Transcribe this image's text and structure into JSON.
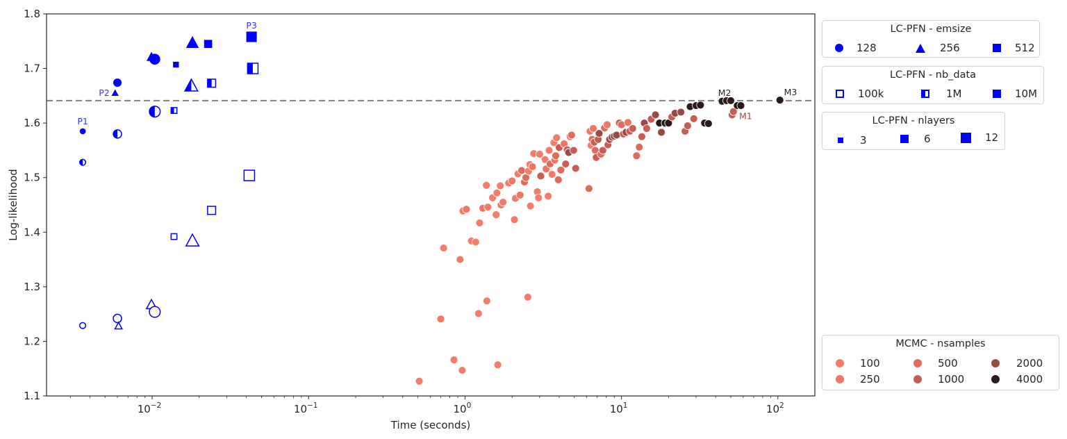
{
  "chart_data": {
    "type": "scatter",
    "title": "",
    "xlabel": "Time (seconds)",
    "ylabel": "Log-likelihood",
    "xscale": "log",
    "xlim": [
      0.0021,
      180
    ],
    "ylim": [
      1.1,
      1.8
    ],
    "x_ticks": [
      {
        "value": 0.01,
        "base": "10",
        "exp": "−2"
      },
      {
        "value": 0.1,
        "base": "10",
        "exp": "−1"
      },
      {
        "value": 1,
        "base": "10",
        "exp": "0"
      },
      {
        "value": 10,
        "base": "10",
        "exp": "1"
      },
      {
        "value": 100,
        "base": "10",
        "exp": "2"
      }
    ],
    "y_ticks": [
      "1.1",
      "1.2",
      "1.3",
      "1.4",
      "1.5",
      "1.6",
      "1.7",
      "1.8"
    ],
    "grid": false,
    "reference_line": {
      "y": 1.641,
      "style": "dashed",
      "color": "#808080"
    },
    "colors": {
      "lcpfn": "#0000ff",
      "mcmc_100": "#f47c6b",
      "mcmc_250": "#f07563",
      "mcmc_500": "#e06b5d",
      "mcmc_1000": "#c75e55",
      "mcmc_2000": "#9a4a44",
      "mcmc_4000": "#2a1a1c"
    },
    "lcpfn_points": [
      {
        "x": 0.0036,
        "y": 1.585,
        "emsize": 128,
        "nb_data": "10M",
        "nlayers": 3
      },
      {
        "x": 0.0036,
        "y": 1.528,
        "emsize": 128,
        "nb_data": "1M",
        "nlayers": 3
      },
      {
        "x": 0.0036,
        "y": 1.229,
        "emsize": 128,
        "nb_data": "100k",
        "nlayers": 3
      },
      {
        "x": 0.006,
        "y": 1.674,
        "emsize": 128,
        "nb_data": "10M",
        "nlayers": 6
      },
      {
        "x": 0.006,
        "y": 1.58,
        "emsize": 128,
        "nb_data": "1M",
        "nlayers": 6
      },
      {
        "x": 0.006,
        "y": 1.242,
        "emsize": 128,
        "nb_data": "100k",
        "nlayers": 6
      },
      {
        "x": 0.0058,
        "y": 1.655,
        "emsize": 256,
        "nb_data": "10M",
        "nlayers": 3
      },
      {
        "x": 0.0061,
        "y": 1.228,
        "emsize": 256,
        "nb_data": "100k",
        "nlayers": 3
      },
      {
        "x": 0.0099,
        "y": 1.721,
        "emsize": 256,
        "nb_data": "10M",
        "nlayers": 6
      },
      {
        "x": 0.0099,
        "y": 1.267,
        "emsize": 256,
        "nb_data": "100k",
        "nlayers": 6
      },
      {
        "x": 0.0104,
        "y": 1.717,
        "emsize": 128,
        "nb_data": "10M",
        "nlayers": 12
      },
      {
        "x": 0.0104,
        "y": 1.621,
        "emsize": 128,
        "nb_data": "1M",
        "nlayers": 12
      },
      {
        "x": 0.0104,
        "y": 1.254,
        "emsize": 128,
        "nb_data": "100k",
        "nlayers": 12
      },
      {
        "x": 0.0142,
        "y": 1.707,
        "emsize": 512,
        "nb_data": "10M",
        "nlayers": 3
      },
      {
        "x": 0.0138,
        "y": 1.623,
        "emsize": 512,
        "nb_data": "1M",
        "nlayers": 3
      },
      {
        "x": 0.0138,
        "y": 1.392,
        "emsize": 512,
        "nb_data": "100k",
        "nlayers": 3
      },
      {
        "x": 0.0181,
        "y": 1.747,
        "emsize": 256,
        "nb_data": "10M",
        "nlayers": 12
      },
      {
        "x": 0.0178,
        "y": 1.668,
        "emsize": 256,
        "nb_data": "1M",
        "nlayers": 12
      },
      {
        "x": 0.0181,
        "y": 1.384,
        "emsize": 256,
        "nb_data": "100k",
        "nlayers": 12
      },
      {
        "x": 0.0228,
        "y": 1.745,
        "emsize": 512,
        "nb_data": "10M",
        "nlayers": 6
      },
      {
        "x": 0.024,
        "y": 1.673,
        "emsize": 512,
        "nb_data": "1M",
        "nlayers": 6
      },
      {
        "x": 0.024,
        "y": 1.44,
        "emsize": 512,
        "nb_data": "100k",
        "nlayers": 6
      },
      {
        "x": 0.0432,
        "y": 1.758,
        "emsize": 512,
        "nb_data": "10M",
        "nlayers": 12
      },
      {
        "x": 0.044,
        "y": 1.7,
        "emsize": 512,
        "nb_data": "1M",
        "nlayers": 12
      },
      {
        "x": 0.0418,
        "y": 1.504,
        "emsize": 512,
        "nb_data": "100k",
        "nlayers": 12
      }
    ],
    "lcpfn_annotations": [
      {
        "label": "P1",
        "x": 0.0036,
        "y": 1.585
      },
      {
        "label": "P2",
        "x": 0.0058,
        "y": 1.655
      },
      {
        "label": "P3",
        "x": 0.0432,
        "y": 1.758
      }
    ],
    "mcmc_annotations": [
      {
        "label": "M1",
        "x": 50,
        "y": 1.62,
        "color": "#9a4a44"
      },
      {
        "label": "M2",
        "x": 45,
        "y": 1.641,
        "color": "#262626"
      },
      {
        "label": "M3",
        "x": 104,
        "y": 1.642,
        "color": "#262626"
      }
    ],
    "mcmc_points": [
      {
        "x": 0.51,
        "y": 1.127,
        "n": 100
      },
      {
        "x": 0.7,
        "y": 1.241,
        "n": 100
      },
      {
        "x": 0.73,
        "y": 1.371,
        "n": 100
      },
      {
        "x": 0.85,
        "y": 1.166,
        "n": 100
      },
      {
        "x": 0.93,
        "y": 1.35,
        "n": 100
      },
      {
        "x": 0.96,
        "y": 1.147,
        "n": 100
      },
      {
        "x": 0.97,
        "y": 1.439,
        "n": 100
      },
      {
        "x": 1.02,
        "y": 1.442,
        "n": 250
      },
      {
        "x": 1.1,
        "y": 1.384,
        "n": 100
      },
      {
        "x": 1.17,
        "y": 1.382,
        "n": 100
      },
      {
        "x": 1.22,
        "y": 1.251,
        "n": 100
      },
      {
        "x": 1.24,
        "y": 1.417,
        "n": 100
      },
      {
        "x": 1.3,
        "y": 1.444,
        "n": 250
      },
      {
        "x": 1.37,
        "y": 1.486,
        "n": 100
      },
      {
        "x": 1.38,
        "y": 1.274,
        "n": 100
      },
      {
        "x": 1.4,
        "y": 1.446,
        "n": 100
      },
      {
        "x": 1.5,
        "y": 1.463,
        "n": 100
      },
      {
        "x": 1.58,
        "y": 1.432,
        "n": 100
      },
      {
        "x": 1.62,
        "y": 1.157,
        "n": 100
      },
      {
        "x": 1.6,
        "y": 1.472,
        "n": 100
      },
      {
        "x": 1.68,
        "y": 1.485,
        "n": 100
      },
      {
        "x": 1.7,
        "y": 1.45,
        "n": 250
      },
      {
        "x": 1.75,
        "y": 1.455,
        "n": 100
      },
      {
        "x": 1.9,
        "y": 1.49,
        "n": 100
      },
      {
        "x": 2.0,
        "y": 1.494,
        "n": 250
      },
      {
        "x": 2.07,
        "y": 1.423,
        "n": 100
      },
      {
        "x": 2.1,
        "y": 1.462,
        "n": 100
      },
      {
        "x": 2.18,
        "y": 1.507,
        "n": 100
      },
      {
        "x": 2.25,
        "y": 1.468,
        "n": 250
      },
      {
        "x": 2.3,
        "y": 1.513,
        "n": 500
      },
      {
        "x": 2.4,
        "y": 1.492,
        "n": 500
      },
      {
        "x": 2.45,
        "y": 1.5,
        "n": 500
      },
      {
        "x": 2.52,
        "y": 1.281,
        "n": 100
      },
      {
        "x": 2.55,
        "y": 1.512,
        "n": 100
      },
      {
        "x": 2.6,
        "y": 1.524,
        "n": 100
      },
      {
        "x": 2.62,
        "y": 1.448,
        "n": 100
      },
      {
        "x": 2.7,
        "y": 1.52,
        "n": 250
      },
      {
        "x": 2.75,
        "y": 1.544,
        "n": 100
      },
      {
        "x": 2.9,
        "y": 1.474,
        "n": 100
      },
      {
        "x": 2.95,
        "y": 1.463,
        "n": 100
      },
      {
        "x": 3.0,
        "y": 1.543,
        "n": 100
      },
      {
        "x": 3.05,
        "y": 1.503,
        "n": 1000
      },
      {
        "x": 3.25,
        "y": 1.533,
        "n": 100
      },
      {
        "x": 3.3,
        "y": 1.516,
        "n": 250
      },
      {
        "x": 3.4,
        "y": 1.466,
        "n": 100
      },
      {
        "x": 3.45,
        "y": 1.55,
        "n": 100
      },
      {
        "x": 3.5,
        "y": 1.525,
        "n": 500
      },
      {
        "x": 3.6,
        "y": 1.506,
        "n": 100
      },
      {
        "x": 3.7,
        "y": 1.564,
        "n": 100
      },
      {
        "x": 3.75,
        "y": 1.532,
        "n": 250
      },
      {
        "x": 3.8,
        "y": 1.54,
        "n": 500
      },
      {
        "x": 3.85,
        "y": 1.573,
        "n": 100
      },
      {
        "x": 3.95,
        "y": 1.496,
        "n": 500
      },
      {
        "x": 4.0,
        "y": 1.555,
        "n": 1000
      },
      {
        "x": 4.1,
        "y": 1.514,
        "n": 500
      },
      {
        "x": 4.3,
        "y": 1.562,
        "n": 250
      },
      {
        "x": 4.4,
        "y": 1.525,
        "n": 1000
      },
      {
        "x": 4.5,
        "y": 1.551,
        "n": 1000
      },
      {
        "x": 4.6,
        "y": 1.546,
        "n": 2000
      },
      {
        "x": 4.7,
        "y": 1.575,
        "n": 250
      },
      {
        "x": 4.8,
        "y": 1.578,
        "n": 500
      },
      {
        "x": 4.95,
        "y": 1.55,
        "n": 1000
      },
      {
        "x": 5.1,
        "y": 1.517,
        "n": 1000
      },
      {
        "x": 6.2,
        "y": 1.48,
        "n": 500
      },
      {
        "x": 6.3,
        "y": 1.585,
        "n": 250
      },
      {
        "x": 6.4,
        "y": 1.559,
        "n": 100
      },
      {
        "x": 6.5,
        "y": 1.57,
        "n": 500
      },
      {
        "x": 6.6,
        "y": 1.59,
        "n": 250
      },
      {
        "x": 6.7,
        "y": 1.565,
        "n": 1000
      },
      {
        "x": 6.8,
        "y": 1.55,
        "n": 500
      },
      {
        "x": 6.9,
        "y": 1.537,
        "n": 1000
      },
      {
        "x": 7.1,
        "y": 1.57,
        "n": 1000
      },
      {
        "x": 7.2,
        "y": 1.581,
        "n": 2000
      },
      {
        "x": 7.4,
        "y": 1.543,
        "n": 500
      },
      {
        "x": 7.6,
        "y": 1.55,
        "n": 1000
      },
      {
        "x": 7.8,
        "y": 1.591,
        "n": 500
      },
      {
        "x": 8.1,
        "y": 1.597,
        "n": 250
      },
      {
        "x": 8.2,
        "y": 1.56,
        "n": 1000
      },
      {
        "x": 8.4,
        "y": 1.57,
        "n": 2000
      },
      {
        "x": 8.7,
        "y": 1.574,
        "n": 2000
      },
      {
        "x": 9.0,
        "y": 1.576,
        "n": 2000
      },
      {
        "x": 9.3,
        "y": 1.578,
        "n": 2000
      },
      {
        "x": 9.7,
        "y": 1.6,
        "n": 1000
      },
      {
        "x": 10.0,
        "y": 1.597,
        "n": 500
      },
      {
        "x": 10.3,
        "y": 1.58,
        "n": 1000
      },
      {
        "x": 10.7,
        "y": 1.583,
        "n": 2000
      },
      {
        "x": 11.0,
        "y": 1.601,
        "n": 250
      },
      {
        "x": 11.3,
        "y": 1.585,
        "n": 1000
      },
      {
        "x": 11.8,
        "y": 1.59,
        "n": 1000
      },
      {
        "x": 12.5,
        "y": 1.54,
        "n": 500
      },
      {
        "x": 13.0,
        "y": 1.556,
        "n": 500
      },
      {
        "x": 13.5,
        "y": 1.575,
        "n": 1000
      },
      {
        "x": 14.0,
        "y": 1.6,
        "n": 2000
      },
      {
        "x": 14.5,
        "y": 1.59,
        "n": 1000
      },
      {
        "x": 15.5,
        "y": 1.607,
        "n": 1000
      },
      {
        "x": 16.5,
        "y": 1.615,
        "n": 2000
      },
      {
        "x": 17.5,
        "y": 1.6,
        "n": 4000
      },
      {
        "x": 18.0,
        "y": 1.583,
        "n": 2000
      },
      {
        "x": 19.0,
        "y": 1.6,
        "n": 4000
      },
      {
        "x": 20.0,
        "y": 1.6,
        "n": 4000
      },
      {
        "x": 21.0,
        "y": 1.611,
        "n": 1000
      },
      {
        "x": 22.0,
        "y": 1.618,
        "n": 2000
      },
      {
        "x": 24.0,
        "y": 1.62,
        "n": 2000
      },
      {
        "x": 25.5,
        "y": 1.585,
        "n": 1000
      },
      {
        "x": 26.5,
        "y": 1.595,
        "n": 1000
      },
      {
        "x": 27.5,
        "y": 1.63,
        "n": 4000
      },
      {
        "x": 29.0,
        "y": 1.608,
        "n": 1000
      },
      {
        "x": 30.0,
        "y": 1.632,
        "n": 4000
      },
      {
        "x": 32.0,
        "y": 1.633,
        "n": 4000
      },
      {
        "x": 34.0,
        "y": 1.6,
        "n": 4000
      },
      {
        "x": 36.0,
        "y": 1.599,
        "n": 4000
      },
      {
        "x": 44.0,
        "y": 1.64,
        "n": 4000
      },
      {
        "x": 47.0,
        "y": 1.641,
        "n": 4000
      },
      {
        "x": 50.0,
        "y": 1.641,
        "n": 4000
      },
      {
        "x": 51.0,
        "y": 1.615,
        "n": 1000
      },
      {
        "x": 52.0,
        "y": 1.621,
        "n": 1000
      },
      {
        "x": 55.0,
        "y": 1.632,
        "n": 4000
      },
      {
        "x": 58.0,
        "y": 1.632,
        "n": 4000
      },
      {
        "x": 103.0,
        "y": 1.642,
        "n": 4000
      }
    ]
  },
  "legends": {
    "emsize": {
      "title": "LC-PFN - emsize",
      "items": [
        {
          "symbol": "circle",
          "label": "128"
        },
        {
          "symbol": "triangle",
          "label": "256"
        },
        {
          "symbol": "square",
          "label": "512"
        }
      ]
    },
    "nb_data": {
      "title": "LC-PFN - nb_data",
      "items": [
        {
          "symbol": "square-empty",
          "label": "100k"
        },
        {
          "symbol": "square-half",
          "label": "1M"
        },
        {
          "symbol": "square-full",
          "label": "10M"
        }
      ]
    },
    "nlayers": {
      "title": "LC-PFN - nlayers",
      "items": [
        {
          "symbol": "square-small",
          "label": "3"
        },
        {
          "symbol": "square-medium",
          "label": "6"
        },
        {
          "symbol": "square-large",
          "label": "12"
        }
      ]
    },
    "mcmc": {
      "title": "MCMC - nsamples",
      "items": [
        {
          "label": "100",
          "color": "#f47c6b"
        },
        {
          "label": "500",
          "color": "#e06b5d"
        },
        {
          "label": "2000",
          "color": "#9a4a44"
        },
        {
          "label": "250",
          "color": "#f07563"
        },
        {
          "label": "1000",
          "color": "#c75e55"
        },
        {
          "label": "4000",
          "color": "#2a1a1c"
        }
      ]
    }
  }
}
